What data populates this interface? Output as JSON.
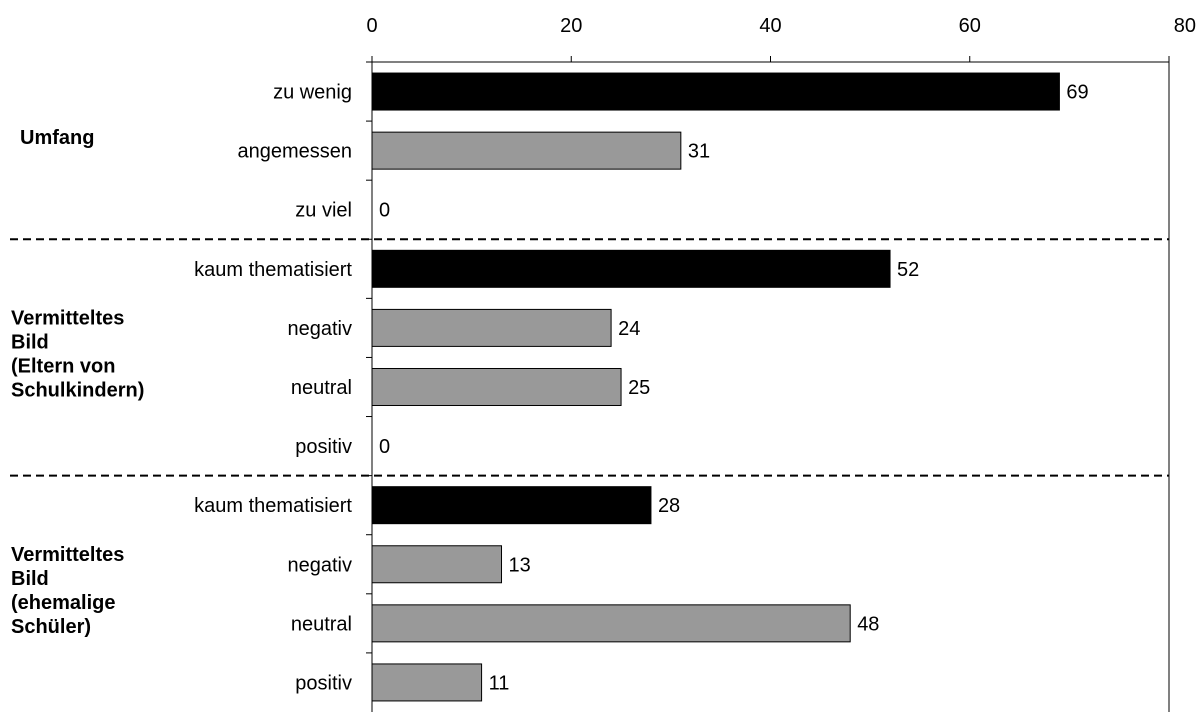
{
  "chart_data": {
    "type": "bar",
    "orientation": "horizontal",
    "x_axis_position": "top",
    "xlim": [
      0,
      80
    ],
    "x_ticks": [
      "0",
      "20",
      "40",
      "60",
      "80"
    ],
    "grid": false,
    "colors": {
      "highlight": "#000000",
      "default": "#999999",
      "stroke": "#000000"
    },
    "groups": [
      {
        "label_lines": [
          "Umfang"
        ],
        "items": [
          {
            "category": "zu wenig",
            "value": 69,
            "highlight": true
          },
          {
            "category": "angemessen",
            "value": 31,
            "highlight": false
          },
          {
            "category": "zu viel",
            "value": 0,
            "highlight": false
          }
        ]
      },
      {
        "label_lines": [
          "Vermitteltes",
          "Bild",
          "(Eltern von",
          "Schulkindern)"
        ],
        "items": [
          {
            "category": "kaum thematisiert",
            "value": 52,
            "highlight": true
          },
          {
            "category": "negativ",
            "value": 24,
            "highlight": false
          },
          {
            "category": "neutral",
            "value": 25,
            "highlight": false
          },
          {
            "category": "positiv",
            "value": 0,
            "highlight": false
          }
        ]
      },
      {
        "label_lines": [
          "Vermitteltes",
          "Bild",
          "(ehemalige",
          "Schüler)"
        ],
        "items": [
          {
            "category": "kaum thematisiert",
            "value": 28,
            "highlight": true
          },
          {
            "category": "negativ",
            "value": 13,
            "highlight": false
          },
          {
            "category": "neutral",
            "value": 48,
            "highlight": false
          },
          {
            "category": "positiv",
            "value": 11,
            "highlight": false
          }
        ]
      }
    ]
  }
}
